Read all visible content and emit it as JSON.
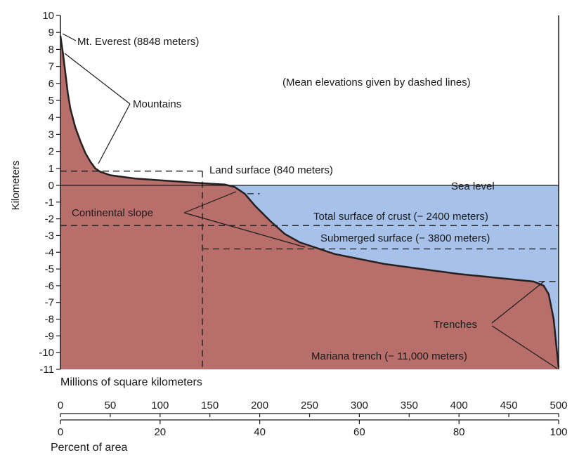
{
  "colors": {
    "land": "#b86f6b",
    "ocean": "#a7c2ea",
    "curve": "#262020",
    "axis": "#1a1a1a",
    "background": "#ffffff"
  },
  "chart_data": {
    "type": "area",
    "title": "",
    "ylabel": "Kilometers",
    "ylim": [
      -11,
      10
    ],
    "y_ticks": [
      "10",
      "9",
      "8",
      "7",
      "6",
      "5",
      "4",
      "3",
      "2",
      "1",
      "0",
      "-1",
      "-2",
      "-3",
      "-4",
      "-5",
      "-6",
      "-7",
      "-8",
      "-9",
      "-10",
      "-11"
    ],
    "xlabel_area": "Millions of square kilometers",
    "x_area_ticks": [
      "0",
      "50",
      "100",
      "150",
      "200",
      "250",
      "300",
      "350",
      "400",
      "450",
      "500"
    ],
    "xlabel_percent": "Percent of area",
    "x_percent_ticks": [
      "0",
      "20",
      "40",
      "60",
      "80",
      "100"
    ],
    "xlim_percent": [
      0,
      100
    ],
    "note": "(Mean elevations given by dashed lines)",
    "series": [
      {
        "points": [
          [
            0,
            8.8
          ],
          [
            0.5,
            7.8
          ],
          [
            1,
            6.6
          ],
          [
            1.5,
            5.4
          ],
          [
            2,
            4.5
          ],
          [
            3,
            3.4
          ],
          [
            4,
            2.6
          ],
          [
            5,
            1.9
          ],
          [
            6,
            1.4
          ],
          [
            7,
            1.0
          ],
          [
            8,
            0.8
          ],
          [
            10,
            0.6
          ],
          [
            15,
            0.4
          ],
          [
            20,
            0.3
          ],
          [
            25,
            0.2
          ],
          [
            30,
            0.1
          ],
          [
            33,
            0.05
          ],
          [
            35,
            -0.1
          ],
          [
            37,
            -0.5
          ],
          [
            39,
            -1.2
          ],
          [
            42,
            -2.1
          ],
          [
            45,
            -2.9
          ],
          [
            48,
            -3.4
          ],
          [
            52,
            -3.8
          ],
          [
            55,
            -4.1
          ],
          [
            60,
            -4.4
          ],
          [
            65,
            -4.7
          ],
          [
            70,
            -4.9
          ],
          [
            75,
            -5.1
          ],
          [
            80,
            -5.3
          ],
          [
            85,
            -5.45
          ],
          [
            90,
            -5.6
          ],
          [
            95,
            -5.75
          ],
          [
            97,
            -6.0
          ],
          [
            98,
            -6.5
          ],
          [
            99,
            -8.0
          ],
          [
            99.5,
            -9.5
          ],
          [
            100,
            -10.9
          ]
        ]
      }
    ],
    "dashed_lines": {
      "land_mean_km": 0.84,
      "land_extent_pct": 28.5,
      "total_crust_mean_km": -2.4,
      "submerged_mean_km": -3.8
    },
    "annotations": {
      "everest": "Mt. Everest (8848 meters)",
      "mountains": "Mountains",
      "land_surface": "Land surface (840 meters)",
      "sea_level": "Sea level",
      "continental_slope": "Continental slope",
      "total_surface": "Total surface of crust (− 2400 meters)",
      "submerged_surface": "Submerged surface (− 3800 meters)",
      "trenches": "Trenches",
      "mariana": "Mariana trench (− 11,000 meters)"
    }
  }
}
